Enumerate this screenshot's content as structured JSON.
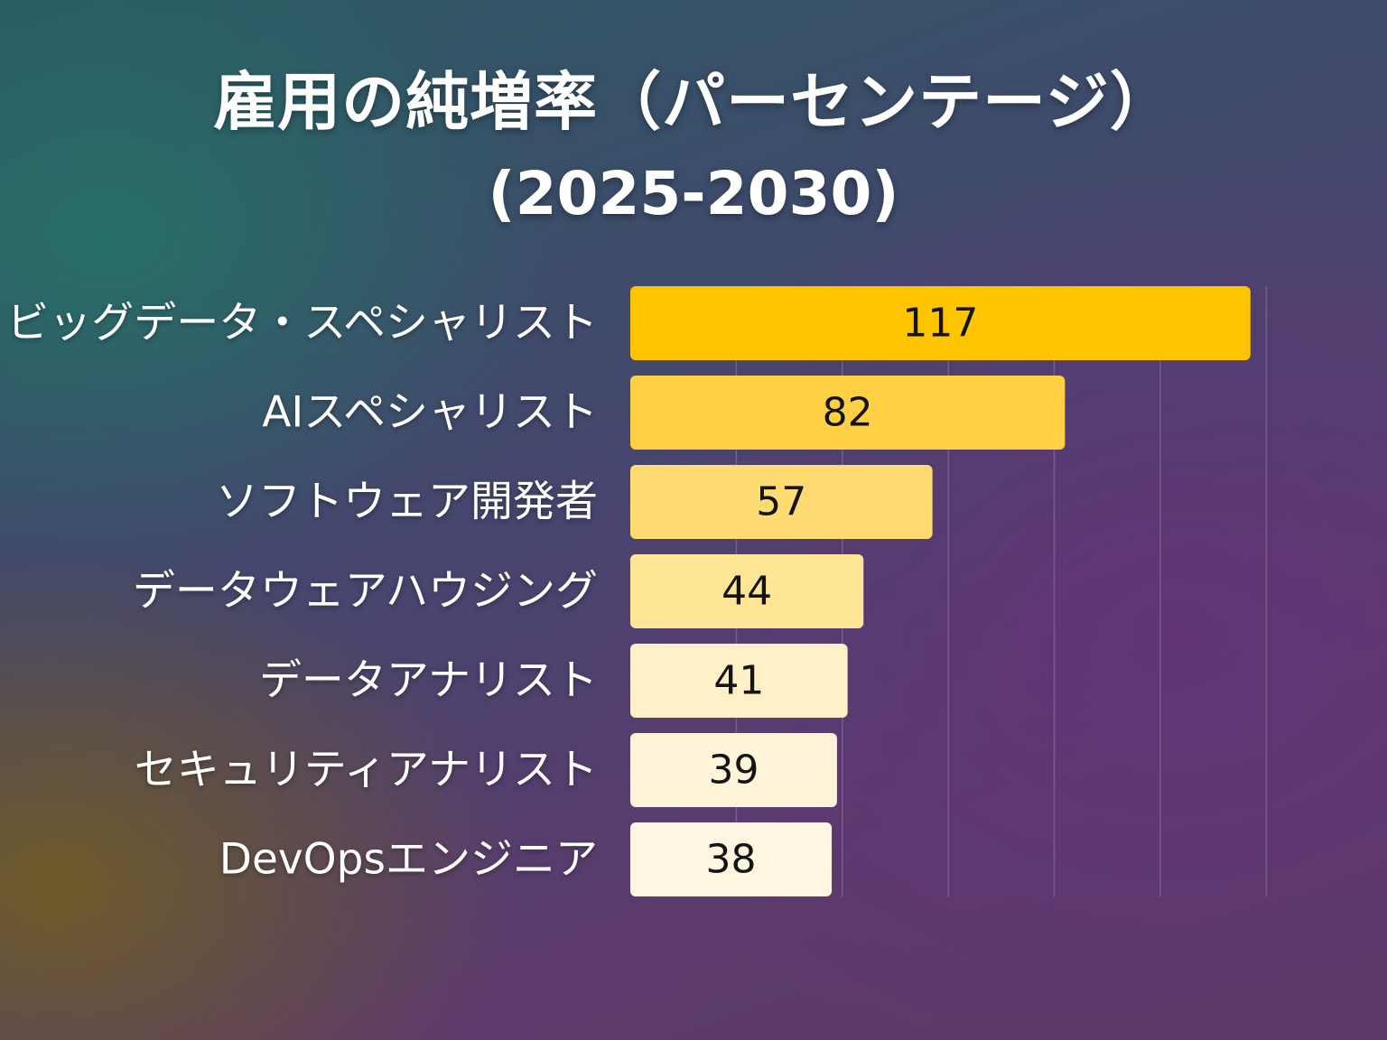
{
  "title": {
    "line1": "雇用の純増率（パーセンテージ）",
    "line2": "(2025-2030)"
  },
  "chart_data": {
    "type": "bar",
    "orientation": "horizontal",
    "title": "雇用の純増率（パーセンテージ） (2025-2030)",
    "categories": [
      "ビッグデータ・スペシャリスト",
      "AIスペシャリスト",
      "ソフトウェア開発者",
      "データウェアハウジング",
      "データアナリスト",
      "セキュリティアナリスト",
      "DevOpsエンジニア"
    ],
    "values": [
      117,
      82,
      57,
      44,
      41,
      39,
      38
    ],
    "data_labels": [
      "117",
      "82",
      "57",
      "44",
      "41",
      "39",
      "38"
    ],
    "xlim": [
      0,
      120
    ],
    "gridlines": true,
    "bar_colors": [
      "#ffc400",
      "#ffd043",
      "#ffdc72",
      "#ffe596",
      "#fff0c8",
      "#fff4da",
      "#fff6e2"
    ]
  }
}
